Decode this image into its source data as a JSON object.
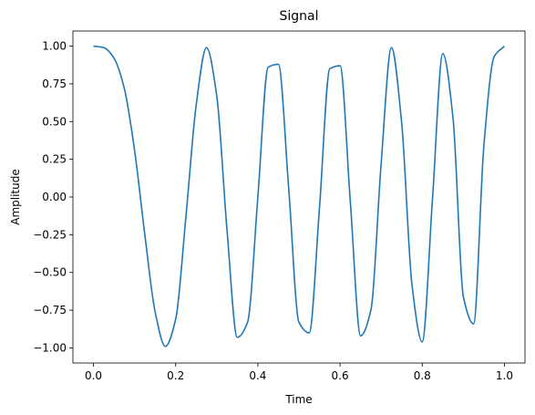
{
  "chart_data": {
    "type": "line",
    "title": "Signal",
    "xlabel": "Time",
    "ylabel": "Amplitude",
    "xlim": [
      -0.05,
      1.05
    ],
    "ylim": [
      -1.1,
      1.1
    ],
    "grid": false,
    "legend": "none",
    "x_ticks": [
      0.0,
      0.2,
      0.4,
      0.6,
      0.8,
      1.0
    ],
    "x_tick_labels": [
      "0.0",
      "0.2",
      "0.4",
      "0.6",
      "0.8",
      "1.0"
    ],
    "y_ticks": [
      -1.0,
      -0.75,
      -0.5,
      -0.25,
      0.0,
      0.25,
      0.5,
      0.75,
      1.0
    ],
    "y_tick_labels": [
      "−1.00",
      "−0.75",
      "−0.50",
      "−0.25",
      "0.00",
      "0.25",
      "0.50",
      "0.75",
      "1.00"
    ],
    "series": [
      {
        "color": "#1f77b4",
        "x": [
          0.0,
          0.025,
          0.05,
          0.075,
          0.1,
          0.125,
          0.15,
          0.175,
          0.2,
          0.225,
          0.25,
          0.275,
          0.3,
          0.325,
          0.35,
          0.375,
          0.4,
          0.425,
          0.45,
          0.475,
          0.5,
          0.525,
          0.55,
          0.575,
          0.6,
          0.625,
          0.65,
          0.675,
          0.7,
          0.725,
          0.75,
          0.775,
          0.8,
          0.825,
          0.85,
          0.875,
          0.9,
          0.925,
          0.95,
          0.975,
          1.0
        ],
        "y": [
          1.0,
          0.99,
          0.92,
          0.72,
          0.31,
          -0.25,
          -0.76,
          -0.99,
          -0.81,
          -0.13,
          0.61,
          0.99,
          0.67,
          -0.22,
          -0.93,
          -0.83,
          0.0,
          0.86,
          0.88,
          0.06,
          -0.83,
          -0.9,
          -0.07,
          0.85,
          0.87,
          -0.03,
          -0.92,
          -0.75,
          0.22,
          0.99,
          0.49,
          -0.58,
          -0.96,
          -0.01,
          0.95,
          0.52,
          -0.66,
          -0.84,
          0.34,
          0.93,
          1.0
        ]
      }
    ]
  },
  "colors": {
    "line": "#1f77b4",
    "axes": "#000000",
    "background": "#ffffff"
  }
}
